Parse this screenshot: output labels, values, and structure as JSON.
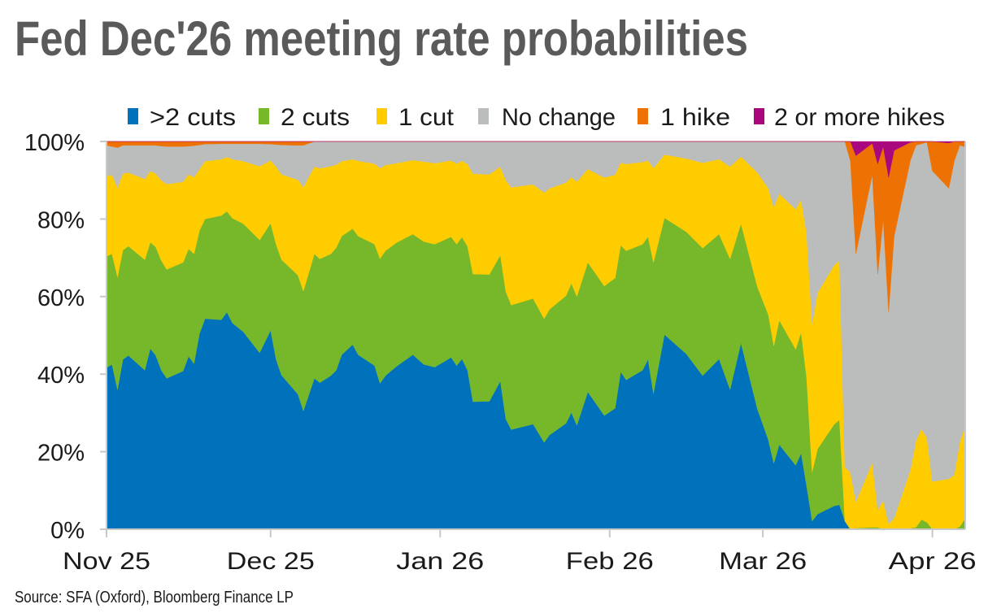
{
  "chart_data": {
    "type": "area",
    "stacked": true,
    "title": "Fed Dec'26 meeting rate probabilities",
    "source": "Source: SFA (Oxford), Bloomberg Finance LP",
    "xlabel": "",
    "ylabel": "",
    "ylim": [
      0,
      100
    ],
    "yticks": [
      "0%",
      "20%",
      "40%",
      "60%",
      "80%",
      "100%"
    ],
    "xrange": [
      "2025-11-01",
      "2026-04-07"
    ],
    "xticks": [
      {
        "date": "2025-11-01",
        "label": "Nov 25"
      },
      {
        "date": "2025-12-01",
        "label": "Dec 25"
      },
      {
        "date": "2026-01-01",
        "label": "Jan 26"
      },
      {
        "date": "2026-02-01",
        "label": "Feb 26"
      },
      {
        "date": "2026-03-01",
        "label": "Mar 26"
      },
      {
        "date": "2026-04-01",
        "label": "Apr 26"
      }
    ],
    "legend_position": "top",
    "grid": false,
    "x": [
      "2025-11-01",
      "2025-11-02",
      "2025-11-03",
      "2025-11-04",
      "2025-11-05",
      "2025-11-08",
      "2025-11-09",
      "2025-11-10",
      "2025-11-11",
      "2025-11-12",
      "2025-11-15",
      "2025-11-16",
      "2025-11-17",
      "2025-11-18",
      "2025-11-19",
      "2025-11-22",
      "2025-11-23",
      "2025-11-24",
      "2025-11-26",
      "2025-11-29",
      "2025-12-01",
      "2025-12-02",
      "2025-12-03",
      "2025-12-06",
      "2025-12-07",
      "2025-12-09",
      "2025-12-10",
      "2025-12-12",
      "2025-12-13",
      "2025-12-14",
      "2025-12-16",
      "2025-12-17",
      "2025-12-20",
      "2025-12-21",
      "2025-12-22",
      "2025-12-24",
      "2025-12-27",
      "2025-12-29",
      "2025-12-31",
      "2026-01-03",
      "2026-01-04",
      "2026-01-05",
      "2026-01-06",
      "2026-01-07",
      "2026-01-10",
      "2026-01-12",
      "2026-01-13",
      "2026-01-14",
      "2026-01-18",
      "2026-01-20",
      "2026-01-21",
      "2026-01-24",
      "2026-01-25",
      "2026-01-26",
      "2026-01-28",
      "2026-01-31",
      "2026-02-02",
      "2026-02-03",
      "2026-02-04",
      "2026-02-07",
      "2026-02-08",
      "2026-02-09",
      "2026-02-11",
      "2026-02-15",
      "2026-02-18",
      "2026-02-21",
      "2026-02-23",
      "2026-02-25",
      "2026-02-28",
      "2026-03-02",
      "2026-03-03",
      "2026-03-04",
      "2026-03-07",
      "2026-03-08",
      "2026-03-09",
      "2026-03-10",
      "2026-03-11",
      "2026-03-14",
      "2026-03-15",
      "2026-03-16",
      "2026-03-17",
      "2026-03-18",
      "2026-03-21",
      "2026-03-22",
      "2026-03-23",
      "2026-03-24",
      "2026-03-25",
      "2026-03-28",
      "2026-03-29",
      "2026-03-30",
      "2026-03-31",
      "2026-04-01",
      "2026-04-04",
      "2026-04-05",
      "2026-04-06",
      "2026-04-07"
    ],
    "series": [
      {
        "name": ">2 cuts",
        "color": "#0072BC",
        "values": [
          41.7,
          42.5,
          36,
          43.8,
          44.8,
          41,
          46.6,
          44.8,
          41,
          38.9,
          40.8,
          44.6,
          42.7,
          50.4,
          54.3,
          54,
          56,
          53.2,
          50.9,
          45.5,
          51.3,
          43.8,
          39.7,
          34.8,
          30.5,
          38.9,
          37.8,
          39.6,
          41,
          45,
          47.6,
          45,
          42.2,
          37.6,
          39.6,
          42,
          45,
          42.5,
          41.8,
          44.3,
          42.2,
          43.9,
          41,
          32.9,
          33,
          38.2,
          28.4,
          25.7,
          27.1,
          22.4,
          24.3,
          27.3,
          30.1,
          26.8,
          35.4,
          29.3,
          31.2,
          40.6,
          38.5,
          41,
          43.8,
          35,
          50.2,
          45.2,
          39.6,
          43.9,
          36,
          48,
          31,
          23,
          17,
          21.8,
          16.5,
          19.6,
          11.2,
          2.1,
          3.9,
          6,
          6.3,
          2.1,
          0,
          0,
          0,
          0,
          0,
          0,
          0,
          0,
          0,
          0,
          0,
          0,
          0,
          0,
          0,
          0
        ]
      },
      {
        "name": "2 cuts",
        "color": "#77B82A",
        "values": [
          28.7,
          28.5,
          29,
          28.2,
          28.2,
          28.5,
          27.4,
          28,
          28.3,
          28.1,
          28,
          27.7,
          28.3,
          26.6,
          25.7,
          26.9,
          26,
          27,
          27.9,
          29.1,
          27.6,
          29.7,
          29.8,
          30.7,
          30.9,
          32.1,
          31.9,
          31.4,
          31.6,
          30.6,
          29.9,
          30.6,
          31.3,
          32.2,
          32.2,
          31.9,
          31.1,
          31.7,
          31.7,
          31.1,
          31.3,
          31.4,
          32,
          32.9,
          32.7,
          32.5,
          32.9,
          32.1,
          32.4,
          31.9,
          32.4,
          32.9,
          33.3,
          33.2,
          33.4,
          33.4,
          33.6,
          32.6,
          33.3,
          32.5,
          31.6,
          33.8,
          30.1,
          31.5,
          32.9,
          32.2,
          33.7,
          30.8,
          31.5,
          32.3,
          30.3,
          32.1,
          29.9,
          31.2,
          28,
          12.6,
          16.8,
          21,
          21.9,
          0,
          0,
          0.3,
          0.5,
          0.5,
          0,
          0,
          0,
          0.3,
          0.5,
          2.5,
          1.8,
          0,
          0,
          0,
          0.7,
          2.8
        ]
      },
      {
        "name": "1 cut",
        "color": "#FFCC00",
        "values": [
          20.6,
          20.4,
          23,
          19.7,
          19,
          20.8,
          18.4,
          18.9,
          20.7,
          22,
          20.8,
          19.2,
          19.8,
          15.8,
          14.9,
          14.5,
          14,
          15.2,
          16.1,
          19,
          16.2,
          20,
          22,
          24.6,
          26.8,
          22.5,
          23.4,
          22.6,
          21.4,
          19.3,
          17.9,
          19.4,
          20.8,
          23.3,
          22.1,
          20.5,
          19.1,
          20.6,
          20.9,
          19.7,
          20.8,
          19.7,
          21.2,
          25.9,
          25.8,
          22.8,
          28.7,
          30.4,
          29.4,
          32.5,
          31.2,
          29.2,
          27.4,
          29.6,
          24.1,
          28,
          26.6,
          21.3,
          22.4,
          21.2,
          19.7,
          24.3,
          16.3,
          18.9,
          22,
          19.3,
          23.8,
          17.3,
          29.5,
          32.6,
          35.7,
          32.6,
          36.1,
          34.2,
          37.1,
          38.2,
          40.3,
          41,
          41.1,
          13.9,
          14.7,
          6.7,
          16.7,
          4.4,
          7.4,
          1.4,
          2.8,
          15.1,
          22.3,
          23.4,
          21.7,
          12.3,
          13,
          14,
          21.7,
          24.2
        ]
      },
      {
        "name": "No change",
        "color": "#BBBCBC",
        "values": [
          8,
          7.3,
          10.4,
          7.3,
          7,
          8.7,
          6.6,
          7.3,
          8.8,
          9.7,
          9.1,
          7.3,
          8.1,
          6.3,
          4.4,
          4,
          3.4,
          4,
          4.5,
          5.8,
          4.2,
          5.7,
          7.6,
          8.9,
          10.8,
          6.5,
          6.9,
          6.4,
          6,
          5.1,
          4.6,
          5,
          5.7,
          6.9,
          6.1,
          5.6,
          4.8,
          5.2,
          5.6,
          4.9,
          5.7,
          5,
          5.8,
          8.3,
          8.5,
          6.5,
          10,
          11.8,
          11.1,
          13.2,
          12.1,
          10.6,
          9.2,
          10.4,
          7.1,
          9.3,
          8.6,
          5.5,
          5.8,
          5.3,
          4.9,
          6.9,
          3.4,
          4.4,
          5.5,
          4.6,
          6.5,
          3.9,
          8,
          12.1,
          17,
          13.5,
          17.5,
          15,
          23.7,
          47.1,
          39,
          32,
          30.7,
          84,
          80.2,
          64,
          74.2,
          60.9,
          72.4,
          54.6,
          72.8,
          79.8,
          76.2,
          73.5,
          76.3,
          80.1,
          74.9,
          80.9,
          76.6,
          71.6
        ]
      },
      {
        "name": "1 hike",
        "color": "#EE7203",
        "values": [
          1,
          1.3,
          1.6,
          1,
          1,
          1,
          1,
          1,
          1.2,
          1.3,
          1.3,
          1.2,
          1.1,
          0.9,
          0.7,
          0.6,
          0.6,
          0.6,
          0.6,
          0.6,
          0.7,
          0.8,
          0.9,
          1,
          1,
          0,
          0,
          0,
          0,
          0,
          0,
          0,
          0,
          0,
          0,
          0,
          0,
          0,
          0,
          0,
          0,
          0,
          0,
          0,
          0,
          0,
          0,
          0,
          0,
          0,
          0,
          0,
          0,
          0,
          0,
          0,
          0,
          0,
          0,
          0,
          0,
          0,
          0,
          0,
          0,
          0,
          0,
          0,
          0,
          0,
          0,
          0,
          0,
          0,
          0,
          0,
          0,
          0,
          0,
          0,
          5.1,
          25.3,
          8.1,
          28.4,
          18.9,
          34.7,
          22.1,
          4.6,
          1,
          0.6,
          0.2,
          7.6,
          11.7,
          5.1,
          1,
          1.4
        ]
      },
      {
        "name": "2 or more hikes",
        "color": "#A8077E",
        "values": [
          0,
          0,
          0,
          0,
          0,
          0,
          0,
          0,
          0,
          0,
          0,
          0,
          0,
          0,
          0,
          0,
          0,
          0,
          0,
          0,
          0,
          0,
          0,
          0,
          0,
          0,
          0,
          0,
          0,
          0,
          0,
          0,
          0,
          0,
          0,
          0,
          0,
          0,
          0,
          0,
          0,
          0,
          0,
          0,
          0,
          0,
          0,
          0,
          0,
          0,
          0,
          0,
          0,
          0,
          0,
          0,
          0,
          0,
          0,
          0,
          0,
          0,
          0,
          0,
          0,
          0,
          0,
          0,
          0,
          0,
          0,
          0,
          0,
          0,
          0,
          0,
          0,
          0,
          0,
          0,
          0,
          3.7,
          0.5,
          5.8,
          1.3,
          9.3,
          2.3,
          0.2,
          0,
          0,
          0,
          0,
          0.4,
          0,
          0,
          0
        ]
      }
    ]
  }
}
